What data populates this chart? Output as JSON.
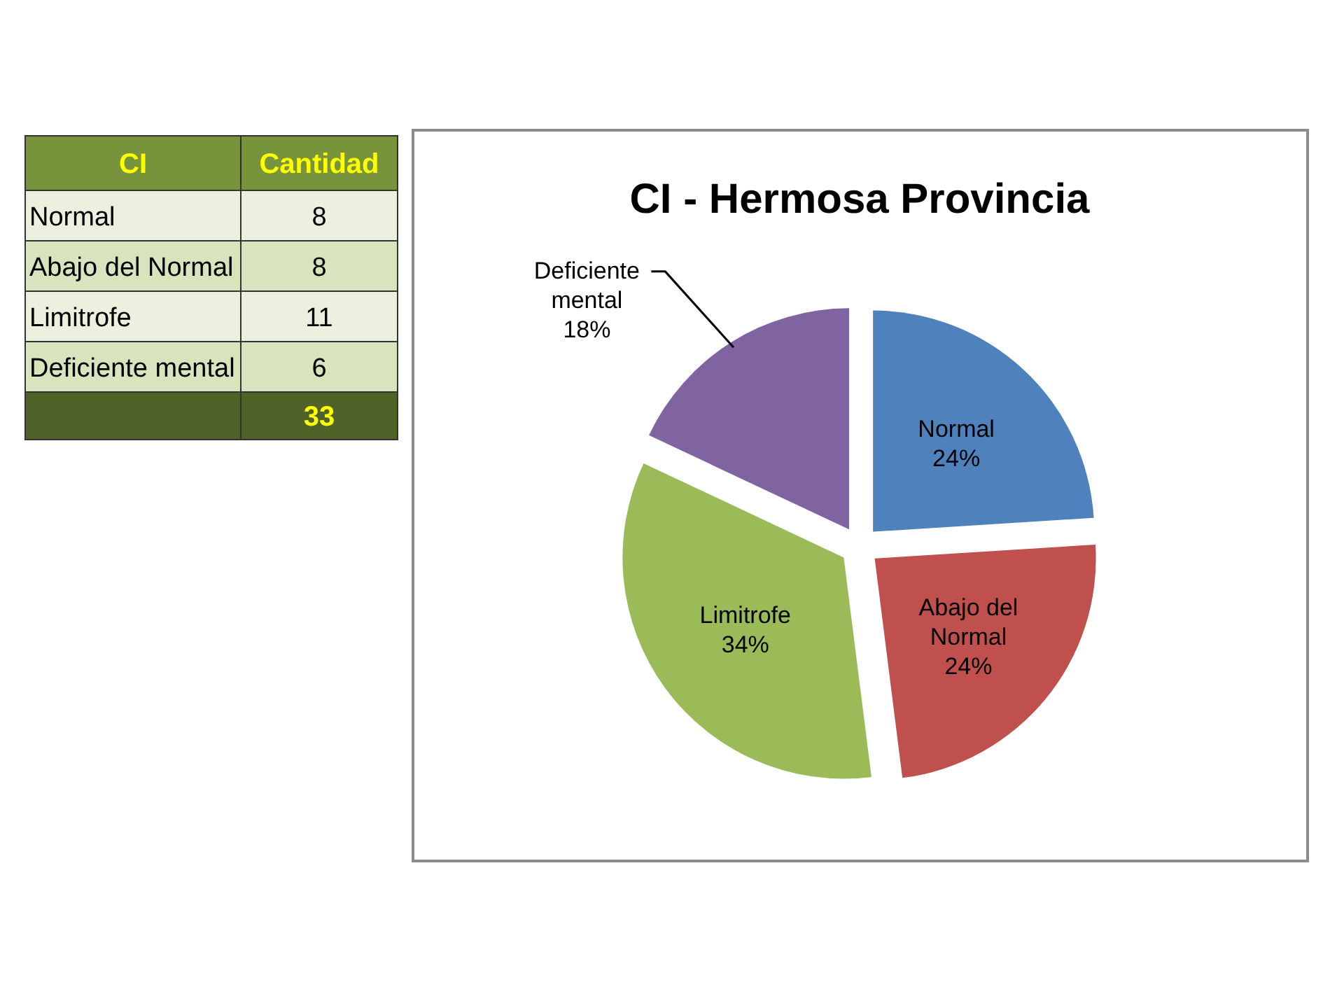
{
  "chart_data": [
    {
      "type": "other",
      "xlabel": "CI",
      "ylabel": "Cantidad",
      "categories": [
        "Normal",
        "Abajo del Normal",
        "Limitrofe",
        "Deficiente mental"
      ],
      "values": [
        8,
        8,
        11,
        6
      ],
      "data_labels": true,
      "totals": [
        "33"
      ]
    },
    {
      "type": "pie",
      "title": "CI - Hermosa Provincia",
      "categories": [
        "Normal",
        "Abajo del Normal",
        "Limitrofe",
        "Deficiente mental"
      ],
      "values": [
        24,
        24,
        34,
        18
      ],
      "colors": [
        "#4f81bd",
        "#c0504d",
        "#9bbb59",
        "#8064a2"
      ],
      "value_labels": [
        "24%",
        "24%",
        "34%",
        "18%"
      ]
    }
  ]
}
